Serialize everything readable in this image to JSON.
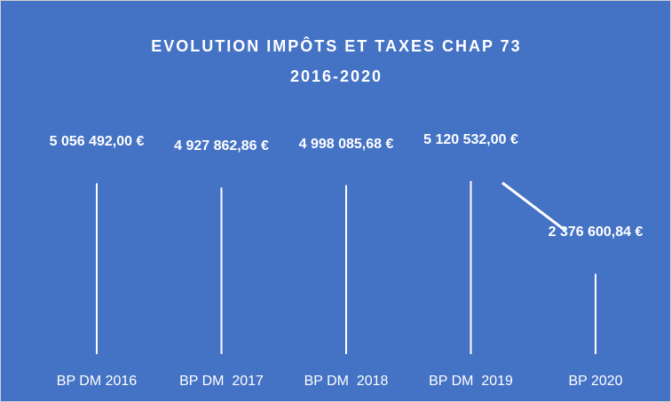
{
  "chart_data": {
    "type": "bar",
    "title": "EVOLUTION IMPÔTS ET TAXES CHAP 73 2016-2020",
    "categories": [
      "BP DM 2016",
      "BP DM  2017",
      "BP DM  2018",
      "BP DM  2019",
      "BP 2020"
    ],
    "values": [
      5056492.0,
      4927862.86,
      4998085.68,
      5120532.0,
      2376600.84
    ],
    "value_labels": [
      "5 056 492,00 €",
      "4 927 862,86 €",
      "4 998 085,68 €",
      "5 120 532,00 €",
      "2 376 600,84 €"
    ],
    "color": "#ffffff"
  }
}
